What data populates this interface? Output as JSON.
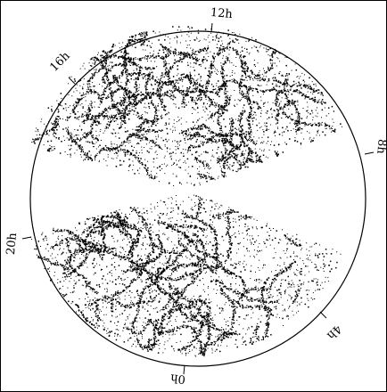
{
  "figure": {
    "background_color": "#ffffff",
    "frame_color": "#000000",
    "point_color": "#000000"
  },
  "hour_labels": [
    {
      "id": "12h",
      "text": "12h"
    },
    {
      "id": "16h",
      "text": "16h"
    },
    {
      "id": "8h",
      "text": "8h"
    },
    {
      "id": "20h",
      "text": "20h"
    },
    {
      "id": "4h",
      "text": "4h"
    },
    {
      "id": "0h",
      "text": "0h"
    }
  ]
}
